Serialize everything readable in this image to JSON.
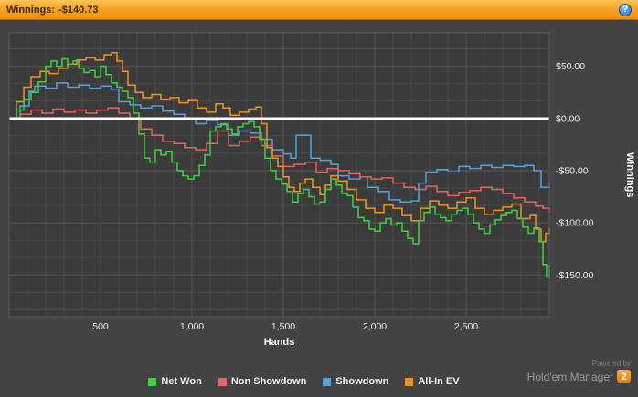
{
  "header": {
    "winnings_label": "Winnings:",
    "winnings_value": "-$140.73",
    "help_glyph": "?"
  },
  "footer": {
    "powered_by": "Powered by",
    "brand": "Hold'em Manager",
    "badge": "2"
  },
  "chart_data": {
    "type": "line",
    "xlabel": "Hands",
    "ylabel": "Winnings",
    "xlim": [
      0,
      2955
    ],
    "ylim": [
      -190,
      82
    ],
    "x_ticks": [
      500,
      1000,
      1500,
      2000,
      2500
    ],
    "x_tick_labels": [
      "500",
      "1,000",
      "1,500",
      "2,000",
      "2,500"
    ],
    "y_ticks": [
      50,
      0,
      -50,
      -100,
      -150
    ],
    "y_tick_labels": [
      "$50.00",
      "$0.00",
      "-$50.00",
      "-$100.00",
      "-$150.00"
    ],
    "zero_line_value": 0,
    "grid": true,
    "legend_position": "bottom",
    "colors": {
      "plot_bg": "#3b3b3b",
      "grid_minor": "#4a4a4a",
      "grid_major": "#555555",
      "plot_border": "#5a5a5a",
      "zero_line": "#ffffff",
      "tick_text": "#ececec"
    },
    "series": [
      {
        "name": "Net Won",
        "color": "#3fd23f",
        "points": [
          [
            0,
            0
          ],
          [
            40,
            8
          ],
          [
            80,
            18
          ],
          [
            120,
            25
          ],
          [
            160,
            35
          ],
          [
            200,
            50
          ],
          [
            230,
            55
          ],
          [
            260,
            50
          ],
          [
            290,
            57
          ],
          [
            320,
            52
          ],
          [
            350,
            55
          ],
          [
            380,
            48
          ],
          [
            410,
            44
          ],
          [
            440,
            46
          ],
          [
            470,
            40
          ],
          [
            500,
            50
          ],
          [
            530,
            42
          ],
          [
            560,
            34
          ],
          [
            590,
            30
          ],
          [
            620,
            26
          ],
          [
            650,
            20
          ],
          [
            680,
            5
          ],
          [
            710,
            -15
          ],
          [
            740,
            -38
          ],
          [
            770,
            -42
          ],
          [
            800,
            -30
          ],
          [
            830,
            -35
          ],
          [
            860,
            -32
          ],
          [
            890,
            -42
          ],
          [
            920,
            -50
          ],
          [
            950,
            -55
          ],
          [
            980,
            -58
          ],
          [
            1010,
            -55
          ],
          [
            1040,
            -45
          ],
          [
            1070,
            -35
          ],
          [
            1100,
            -12
          ],
          [
            1130,
            -8
          ],
          [
            1160,
            -5
          ],
          [
            1190,
            -10
          ],
          [
            1220,
            -15
          ],
          [
            1250,
            -8
          ],
          [
            1280,
            -5
          ],
          [
            1310,
            -3
          ],
          [
            1340,
            -8
          ],
          [
            1370,
            -20
          ],
          [
            1400,
            -38
          ],
          [
            1430,
            -50
          ],
          [
            1460,
            -58
          ],
          [
            1490,
            -63
          ],
          [
            1520,
            -70
          ],
          [
            1550,
            -80
          ],
          [
            1580,
            -72
          ],
          [
            1610,
            -68
          ],
          [
            1640,
            -75
          ],
          [
            1670,
            -82
          ],
          [
            1700,
            -80
          ],
          [
            1730,
            -68
          ],
          [
            1760,
            -58
          ],
          [
            1790,
            -64
          ],
          [
            1820,
            -72
          ],
          [
            1850,
            -74
          ],
          [
            1880,
            -85
          ],
          [
            1910,
            -95
          ],
          [
            1940,
            -98
          ],
          [
            1970,
            -106
          ],
          [
            2000,
            -108
          ],
          [
            2030,
            -100
          ],
          [
            2060,
            -96
          ],
          [
            2090,
            -102
          ],
          [
            2120,
            -100
          ],
          [
            2150,
            -108
          ],
          [
            2180,
            -115
          ],
          [
            2210,
            -120
          ],
          [
            2240,
            -98
          ],
          [
            2270,
            -90
          ],
          [
            2300,
            -85
          ],
          [
            2330,
            -92
          ],
          [
            2360,
            -95
          ],
          [
            2390,
            -98
          ],
          [
            2420,
            -92
          ],
          [
            2450,
            -88
          ],
          [
            2480,
            -86
          ],
          [
            2510,
            -92
          ],
          [
            2540,
            -100
          ],
          [
            2570,
            -106
          ],
          [
            2600,
            -110
          ],
          [
            2630,
            -102
          ],
          [
            2660,
            -97
          ],
          [
            2690,
            -93
          ],
          [
            2720,
            -90
          ],
          [
            2750,
            -88
          ],
          [
            2780,
            -96
          ],
          [
            2810,
            -104
          ],
          [
            2840,
            -110
          ],
          [
            2870,
            -105
          ],
          [
            2900,
            -118
          ],
          [
            2920,
            -140
          ],
          [
            2940,
            -152
          ],
          [
            2955,
            -141
          ]
        ]
      },
      {
        "name": "Non Showdown",
        "color": "#e8635a",
        "points": [
          [
            0,
            0
          ],
          [
            60,
            4
          ],
          [
            120,
            8
          ],
          [
            180,
            5
          ],
          [
            240,
            9
          ],
          [
            300,
            6
          ],
          [
            360,
            8
          ],
          [
            420,
            5
          ],
          [
            480,
            8
          ],
          [
            540,
            10
          ],
          [
            600,
            5
          ],
          [
            660,
            0
          ],
          [
            720,
            -10
          ],
          [
            780,
            -16
          ],
          [
            840,
            -22
          ],
          [
            900,
            -24
          ],
          [
            960,
            -28
          ],
          [
            1020,
            -30
          ],
          [
            1080,
            -24
          ],
          [
            1140,
            -12
          ],
          [
            1200,
            -26
          ],
          [
            1260,
            -22
          ],
          [
            1320,
            -18
          ],
          [
            1380,
            -26
          ],
          [
            1440,
            -36
          ],
          [
            1500,
            -46
          ],
          [
            1560,
            -44
          ],
          [
            1620,
            -42
          ],
          [
            1680,
            -52
          ],
          [
            1740,
            -48
          ],
          [
            1800,
            -50
          ],
          [
            1860,
            -53
          ],
          [
            1920,
            -56
          ],
          [
            1980,
            -58
          ],
          [
            2040,
            -57
          ],
          [
            2100,
            -62
          ],
          [
            2160,
            -66
          ],
          [
            2220,
            -68
          ],
          [
            2280,
            -65
          ],
          [
            2340,
            -70
          ],
          [
            2400,
            -74
          ],
          [
            2460,
            -71
          ],
          [
            2520,
            -69
          ],
          [
            2580,
            -66
          ],
          [
            2640,
            -68
          ],
          [
            2700,
            -72
          ],
          [
            2760,
            -76
          ],
          [
            2820,
            -80
          ],
          [
            2880,
            -84
          ],
          [
            2920,
            -86
          ],
          [
            2955,
            -90
          ]
        ]
      },
      {
        "name": "Showdown",
        "color": "#55a0dd",
        "points": [
          [
            0,
            0
          ],
          [
            60,
            12
          ],
          [
            110,
            26
          ],
          [
            140,
            31
          ],
          [
            200,
            29
          ],
          [
            260,
            34
          ],
          [
            320,
            30
          ],
          [
            380,
            32
          ],
          [
            440,
            29
          ],
          [
            500,
            31
          ],
          [
            560,
            28
          ],
          [
            600,
            16
          ],
          [
            660,
            13
          ],
          [
            720,
            10
          ],
          [
            780,
            12
          ],
          [
            840,
            7
          ],
          [
            900,
            4
          ],
          [
            960,
            0
          ],
          [
            1020,
            -5
          ],
          [
            1080,
            -2
          ],
          [
            1140,
            -6
          ],
          [
            1200,
            -16
          ],
          [
            1260,
            -12
          ],
          [
            1320,
            -14
          ],
          [
            1380,
            -20
          ],
          [
            1440,
            -30
          ],
          [
            1500,
            -34
          ],
          [
            1540,
            -38
          ],
          [
            1570,
            -16
          ],
          [
            1630,
            -16
          ],
          [
            1650,
            -38
          ],
          [
            1700,
            -40
          ],
          [
            1760,
            -44
          ],
          [
            1800,
            -55
          ],
          [
            1860,
            -58
          ],
          [
            1920,
            -56
          ],
          [
            1960,
            -66
          ],
          [
            2020,
            -70
          ],
          [
            2080,
            -78
          ],
          [
            2140,
            -80
          ],
          [
            2200,
            -79
          ],
          [
            2240,
            -62
          ],
          [
            2280,
            -52
          ],
          [
            2340,
            -49
          ],
          [
            2400,
            -51
          ],
          [
            2460,
            -46
          ],
          [
            2520,
            -48
          ],
          [
            2580,
            -45
          ],
          [
            2640,
            -47
          ],
          [
            2700,
            -45
          ],
          [
            2760,
            -46
          ],
          [
            2820,
            -45
          ],
          [
            2870,
            -50
          ],
          [
            2910,
            -66
          ],
          [
            2955,
            -62
          ]
        ]
      },
      {
        "name": "All-In EV",
        "color": "#f0941e",
        "points": [
          [
            0,
            0
          ],
          [
            40,
            16
          ],
          [
            80,
            30
          ],
          [
            120,
            40
          ],
          [
            170,
            45
          ],
          [
            220,
            43
          ],
          [
            270,
            48
          ],
          [
            320,
            52
          ],
          [
            370,
            56
          ],
          [
            420,
            58
          ],
          [
            470,
            56
          ],
          [
            520,
            61
          ],
          [
            560,
            63
          ],
          [
            590,
            55
          ],
          [
            620,
            45
          ],
          [
            650,
            32
          ],
          [
            690,
            25
          ],
          [
            730,
            20
          ],
          [
            780,
            23
          ],
          [
            830,
            18
          ],
          [
            880,
            20
          ],
          [
            930,
            15
          ],
          [
            980,
            17
          ],
          [
            1030,
            10
          ],
          [
            1080,
            6
          ],
          [
            1130,
            14
          ],
          [
            1170,
            10
          ],
          [
            1210,
            3
          ],
          [
            1260,
            6
          ],
          [
            1310,
            9
          ],
          [
            1350,
            11
          ],
          [
            1380,
            -5
          ],
          [
            1410,
            -28
          ],
          [
            1440,
            -38
          ],
          [
            1470,
            -46
          ],
          [
            1500,
            -56
          ],
          [
            1530,
            -66
          ],
          [
            1560,
            -70
          ],
          [
            1590,
            -62
          ],
          [
            1620,
            -58
          ],
          [
            1660,
            -66
          ],
          [
            1700,
            -73
          ],
          [
            1730,
            -64
          ],
          [
            1760,
            -55
          ],
          [
            1800,
            -60
          ],
          [
            1850,
            -68
          ],
          [
            1900,
            -78
          ],
          [
            1950,
            -86
          ],
          [
            2000,
            -90
          ],
          [
            2050,
            -83
          ],
          [
            2100,
            -86
          ],
          [
            2150,
            -93
          ],
          [
            2200,
            -98
          ],
          [
            2250,
            -86
          ],
          [
            2300,
            -79
          ],
          [
            2350,
            -83
          ],
          [
            2400,
            -86
          ],
          [
            2450,
            -80
          ],
          [
            2500,
            -76
          ],
          [
            2550,
            -86
          ],
          [
            2600,
            -92
          ],
          [
            2650,
            -88
          ],
          [
            2700,
            -85
          ],
          [
            2750,
            -82
          ],
          [
            2800,
            -96
          ],
          [
            2850,
            -93
          ],
          [
            2880,
            -106
          ],
          [
            2910,
            -118
          ],
          [
            2935,
            -110
          ],
          [
            2955,
            -105
          ]
        ]
      }
    ]
  }
}
